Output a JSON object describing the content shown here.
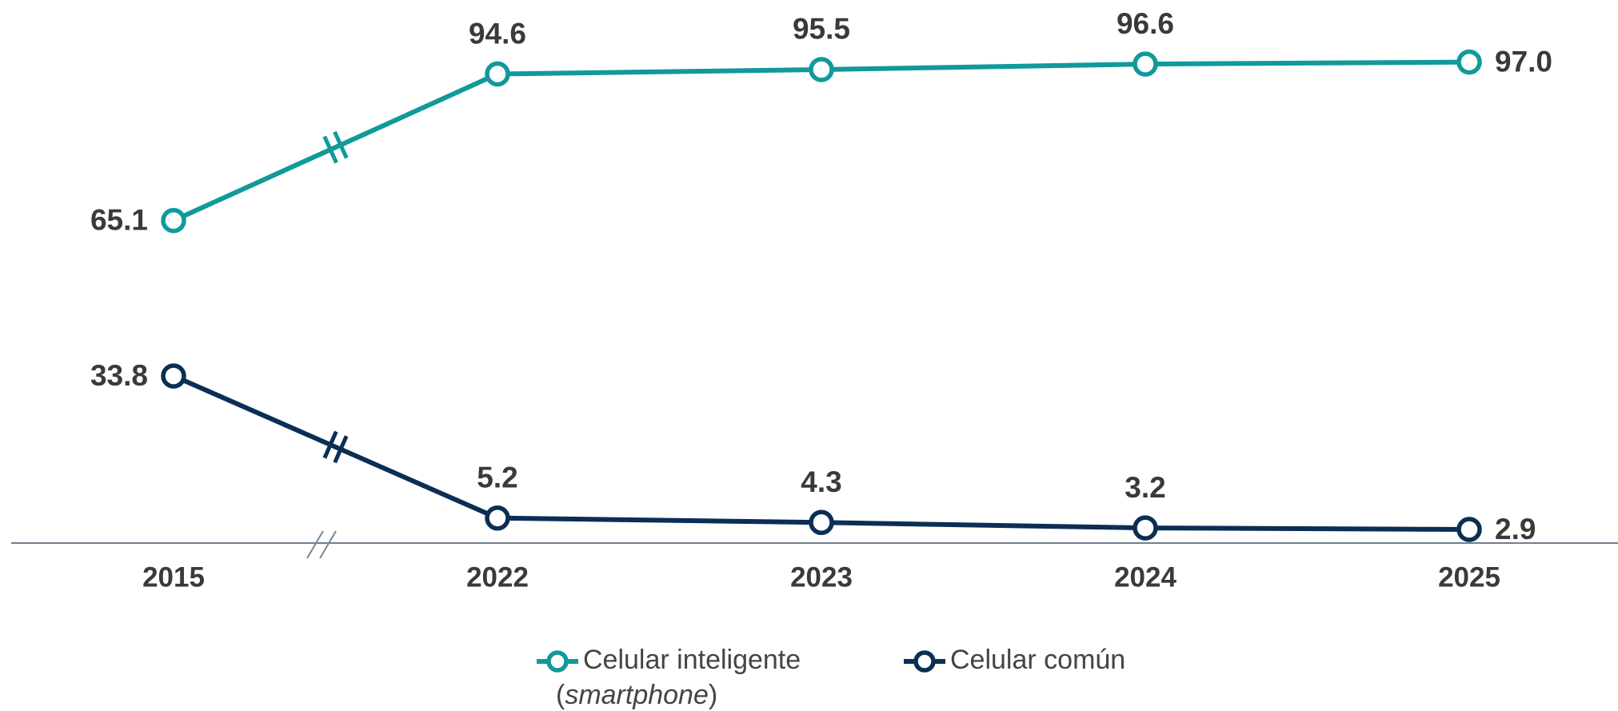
{
  "chart_data": {
    "type": "line",
    "categories": [
      "2015",
      "2022",
      "2023",
      "2024",
      "2025"
    ],
    "series": [
      {
        "name": "Celular inteligente (smartphone)",
        "color": "#11999b",
        "values": [
          65.1,
          94.6,
          95.5,
          96.6,
          97
        ],
        "value_labels": [
          "65.1",
          "94.6",
          "95.5",
          "96.6",
          "97.0"
        ]
      },
      {
        "name": "Celular común",
        "color": "#0b2e55",
        "values": [
          33.8,
          5.2,
          4.3,
          3.2,
          2.9
        ]
      }
    ],
    "ylim": [
      0,
      100
    ]
  }
}
